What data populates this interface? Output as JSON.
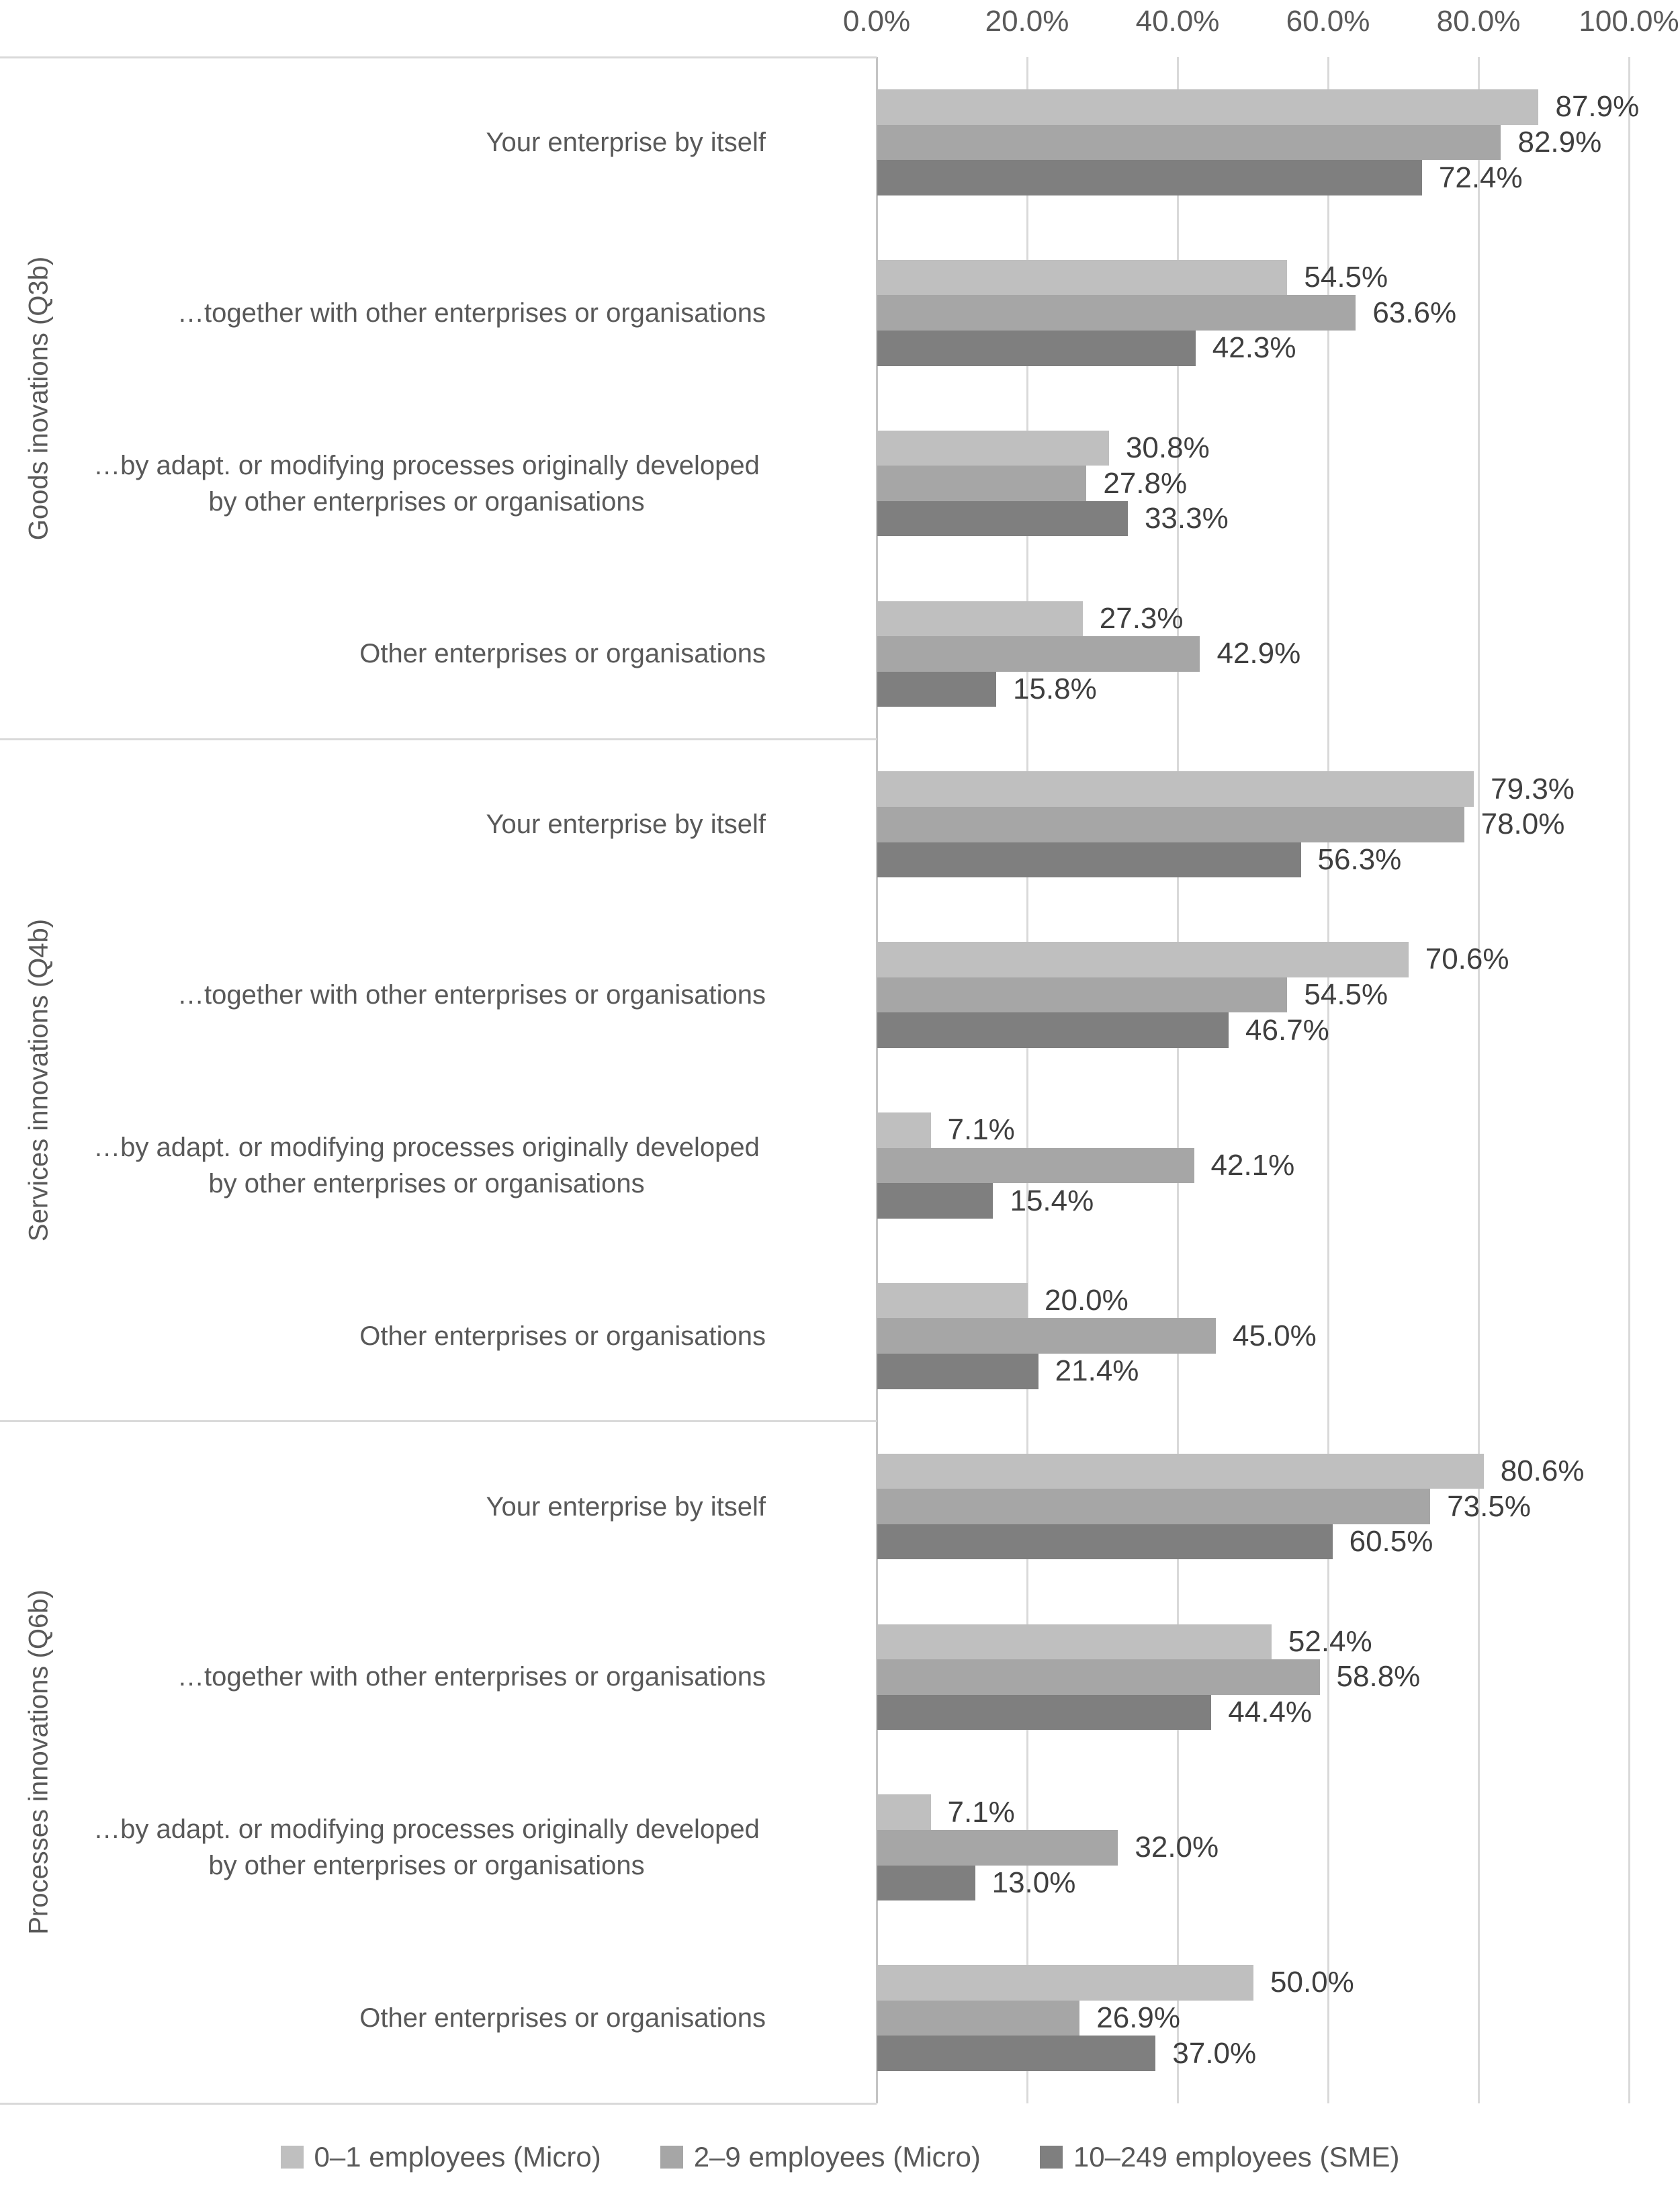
{
  "colors": {
    "series_light": "#bfbfbf",
    "series_medium": "#a6a6a6",
    "series_dark": "#7f7f7f",
    "grid": "#d9d9d9",
    "axis_line": "#c4c4c4",
    "border": "#d9d9d9",
    "text": "#595959",
    "value_label": "#3f3f3f",
    "background": "#ffffff"
  },
  "chart_data": {
    "type": "bar",
    "orientation": "horizontal",
    "title": "",
    "x_axis": {
      "position": "top",
      "min": 0,
      "max": 100,
      "step": 20,
      "ticks": [
        "0.0%",
        "20.0%",
        "40.0%",
        "60.0%",
        "80.0%",
        "100.0%"
      ]
    },
    "gridlines": true,
    "legend_position": "bottom",
    "value_label_suffix": "%",
    "series": [
      {
        "name": "0–1 employees (Micro)",
        "color": "#bfbfbf"
      },
      {
        "name": "2–9 employees (Micro)",
        "color": "#a6a6a6"
      },
      {
        "name": "10–249 employees (SME)",
        "color": "#7f7f7f"
      }
    ],
    "groups": [
      {
        "label": "Goods inovations (Q3b)",
        "rows": [
          {
            "category": "Your enterprise by itself",
            "values": [
              87.9,
              82.9,
              72.4
            ]
          },
          {
            "category": "…together with other enterprises or organisations",
            "values": [
              54.5,
              63.6,
              42.3
            ]
          },
          {
            "category": "…by adapt. or modifying processes originally developed by other enterprises or organisations",
            "values": [
              30.8,
              27.8,
              33.3
            ]
          },
          {
            "category": "Other enterprises or organisations",
            "values": [
              27.3,
              42.9,
              15.8
            ]
          }
        ]
      },
      {
        "label": "Services innovations (Q4b)",
        "rows": [
          {
            "category": "Your enterprise by itself",
            "values": [
              79.3,
              78.0,
              56.3
            ]
          },
          {
            "category": "…together with other enterprises or organisations",
            "values": [
              70.6,
              54.5,
              46.7
            ]
          },
          {
            "category": "…by adapt. or modifying processes originally developed by other enterprises or organisations",
            "values": [
              7.1,
              42.1,
              15.4
            ]
          },
          {
            "category": "Other enterprises or organisations",
            "values": [
              20.0,
              45.0,
              21.4
            ]
          }
        ]
      },
      {
        "label": "Processes innovations (Q6b)",
        "rows": [
          {
            "category": "Your enterprise by itself",
            "values": [
              80.6,
              73.5,
              60.5
            ]
          },
          {
            "category": "…together with other enterprises or organisations",
            "values": [
              52.4,
              58.8,
              44.4
            ]
          },
          {
            "category": "…by adapt. or modifying processes originally developed by other enterprises or organisations",
            "values": [
              7.1,
              32.0,
              13.0
            ]
          },
          {
            "category": "Other enterprises or organisations",
            "values": [
              50.0,
              26.9,
              37.0
            ]
          }
        ]
      }
    ]
  }
}
